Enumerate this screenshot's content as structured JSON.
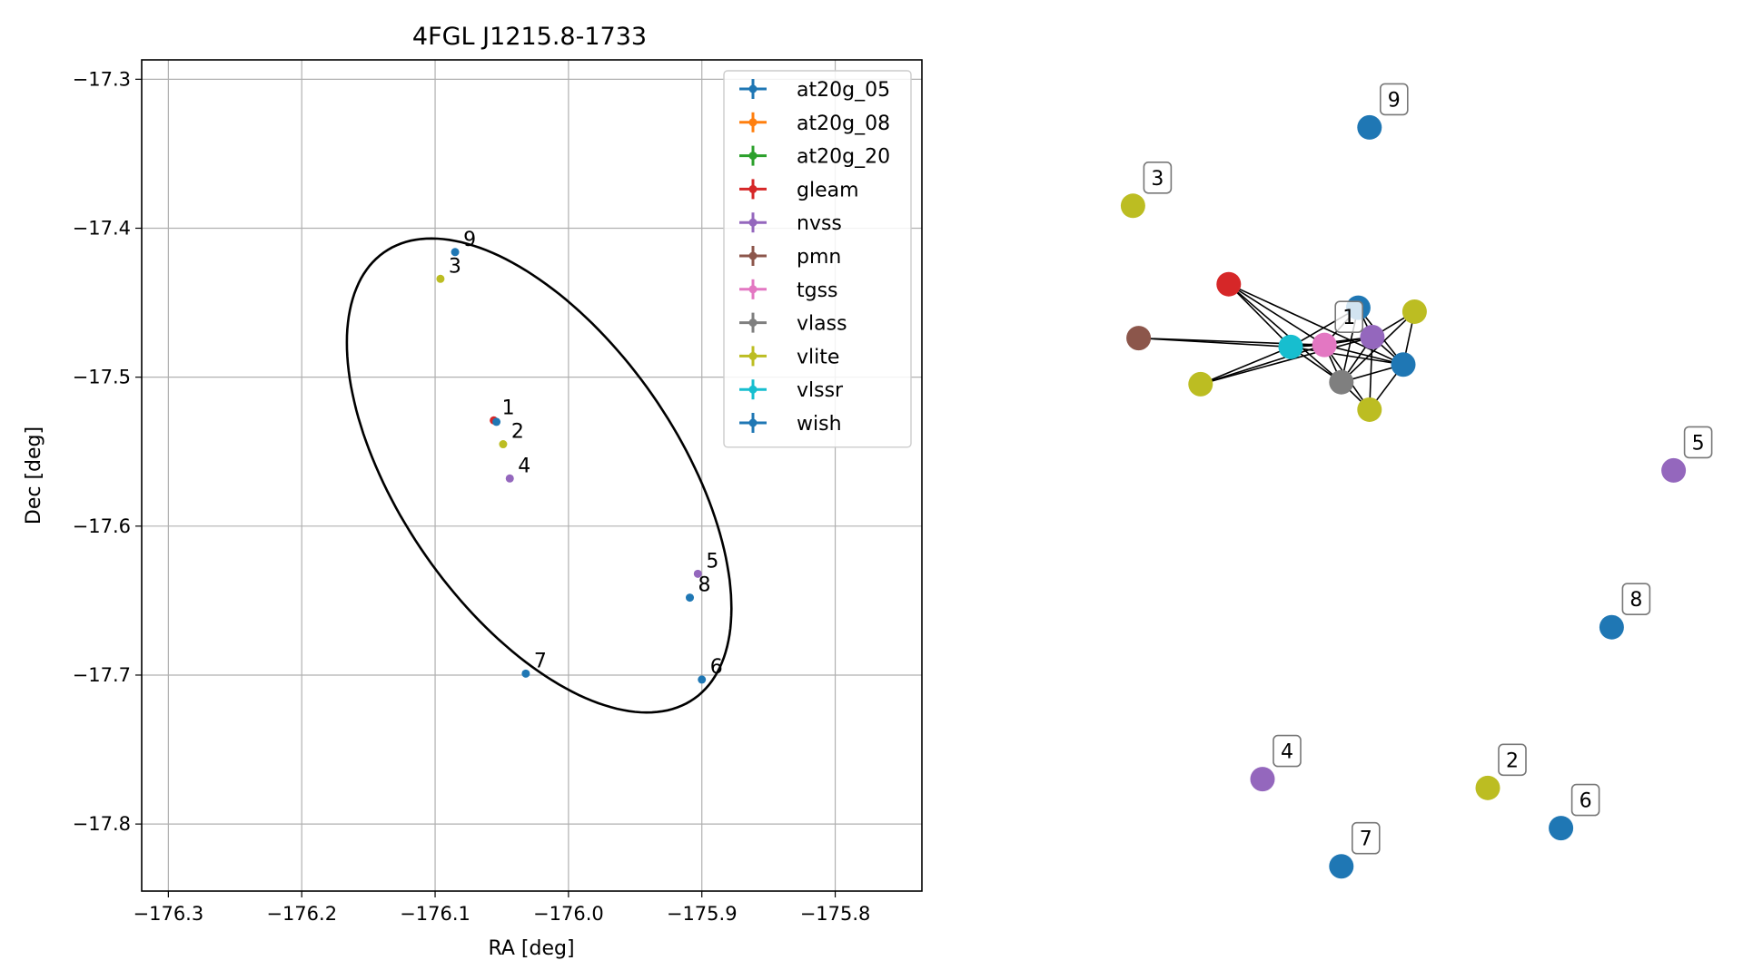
{
  "chart_data": [
    {
      "type": "scatter",
      "title": "4FGL J1215.8-1733",
      "xlabel": "RA [deg]",
      "ylabel": "Dec [deg]",
      "xlim": [
        -176.32,
        -175.735
      ],
      "ylim": [
        -17.845,
        -17.287
      ],
      "x_ticks": [
        -176.3,
        -176.2,
        -176.1,
        -176.0,
        -175.9,
        -175.8
      ],
      "x_tick_labels": [
        "−176.3",
        "−176.2",
        "−176.1",
        "−176.0",
        "−175.9",
        "−175.8"
      ],
      "y_ticks": [
        -17.3,
        -17.4,
        -17.5,
        -17.6,
        -17.7,
        -17.8
      ],
      "y_tick_labels": [
        "−17.3",
        "−17.4",
        "−17.5",
        "−17.6",
        "−17.7",
        "−17.8"
      ],
      "grid": true,
      "legend_position": "top-right",
      "legend": [
        {
          "name": "at20g_05",
          "color": "#1f77b4"
        },
        {
          "name": "at20g_08",
          "color": "#ff7f0e"
        },
        {
          "name": "at20g_20",
          "color": "#2ca02c"
        },
        {
          "name": "gleam",
          "color": "#d62728"
        },
        {
          "name": "nvss",
          "color": "#9467bd"
        },
        {
          "name": "pmn",
          "color": "#8c564b"
        },
        {
          "name": "tgss",
          "color": "#e377c2"
        },
        {
          "name": "vlass",
          "color": "#7f7f7f"
        },
        {
          "name": "vlite",
          "color": "#bcbd22"
        },
        {
          "name": "vlssr",
          "color": "#17becf"
        },
        {
          "name": "wish",
          "color": "#1f77b4"
        }
      ],
      "ellipse": {
        "center": [
          -176.022,
          -17.566
        ],
        "semi_axis_1": 0.19,
        "semi_axis_2": 0.1,
        "angle_deg": 130
      },
      "points": [
        {
          "label": "1",
          "ra": -176.056,
          "dec": -17.529,
          "color": "#d62728"
        },
        {
          "label": "",
          "ra": -176.054,
          "dec": -17.53,
          "color": "#1f77b4"
        },
        {
          "label": "2",
          "ra": -176.049,
          "dec": -17.545,
          "color": "#bcbd22"
        },
        {
          "label": "4",
          "ra": -176.044,
          "dec": -17.568,
          "color": "#9467bd"
        },
        {
          "label": "3",
          "ra": -176.096,
          "dec": -17.434,
          "color": "#bcbd22"
        },
        {
          "label": "9",
          "ra": -176.085,
          "dec": -17.416,
          "color": "#1f77b4"
        },
        {
          "label": "5",
          "ra": -175.903,
          "dec": -17.632,
          "color": "#9467bd"
        },
        {
          "label": "8",
          "ra": -175.909,
          "dec": -17.648,
          "color": "#1f77b4"
        },
        {
          "label": "7",
          "ra": -176.032,
          "dec": -17.699,
          "color": "#1f77b4"
        },
        {
          "label": "6",
          "ra": -175.9,
          "dec": -17.703,
          "color": "#1f77b4"
        }
      ]
    },
    {
      "type": "network",
      "nodes": [
        {
          "id": "9",
          "label": "9",
          "color": "#1f77b4",
          "x": 0.44,
          "y": 0.13
        },
        {
          "id": "3",
          "label": "3",
          "color": "#bcbd22",
          "x": 0.02,
          "y": 0.21
        },
        {
          "id": "gleam",
          "label": "",
          "color": "#d62728",
          "x": 0.19,
          "y": 0.29
        },
        {
          "id": "pmn",
          "label": "",
          "color": "#8c564b",
          "x": 0.03,
          "y": 0.345
        },
        {
          "id": "wish_a",
          "label": "",
          "color": "#1f77b4",
          "x": 0.42,
          "y": 0.314
        },
        {
          "id": "vlite_a",
          "label": "",
          "color": "#bcbd22",
          "x": 0.52,
          "y": 0.318
        },
        {
          "id": "tgss",
          "label": "1",
          "color": "#e377c2",
          "x": 0.36,
          "y": 0.352
        },
        {
          "id": "nvss",
          "label": "",
          "color": "#9467bd",
          "x": 0.445,
          "y": 0.344
        },
        {
          "id": "vlssr",
          "label": "",
          "color": "#17becf",
          "x": 0.3,
          "y": 0.354
        },
        {
          "id": "vlite_b",
          "label": "",
          "color": "#bcbd22",
          "x": 0.14,
          "y": 0.392
        },
        {
          "id": "vlass",
          "label": "",
          "color": "#7f7f7f",
          "x": 0.39,
          "y": 0.39
        },
        {
          "id": "at20g",
          "label": "",
          "color": "#1f77b4",
          "x": 0.5,
          "y": 0.372
        },
        {
          "id": "vlite_c",
          "label": "",
          "color": "#bcbd22",
          "x": 0.44,
          "y": 0.418
        },
        {
          "id": "5",
          "label": "5",
          "color": "#9467bd",
          "x": 0.98,
          "y": 0.48
        },
        {
          "id": "8",
          "label": "8",
          "color": "#1f77b4",
          "x": 0.87,
          "y": 0.64
        },
        {
          "id": "4",
          "label": "4",
          "color": "#9467bd",
          "x": 0.25,
          "y": 0.795
        },
        {
          "id": "2",
          "label": "2",
          "color": "#bcbd22",
          "x": 0.65,
          "y": 0.804
        },
        {
          "id": "6",
          "label": "6",
          "color": "#1f77b4",
          "x": 0.78,
          "y": 0.845
        },
        {
          "id": "7",
          "label": "7",
          "color": "#1f77b4",
          "x": 0.39,
          "y": 0.884
        }
      ],
      "edges": [
        [
          "gleam",
          "tgss"
        ],
        [
          "gleam",
          "vlssr"
        ],
        [
          "gleam",
          "vlass"
        ],
        [
          "gleam",
          "at20g"
        ],
        [
          "pmn",
          "vlssr"
        ],
        [
          "pmn",
          "tgss"
        ],
        [
          "vlite_b",
          "vlssr"
        ],
        [
          "vlite_b",
          "tgss"
        ],
        [
          "vlite_b",
          "nvss"
        ],
        [
          "vlssr",
          "tgss"
        ],
        [
          "vlssr",
          "nvss"
        ],
        [
          "vlssr",
          "wish_a"
        ],
        [
          "vlssr",
          "vlass"
        ],
        [
          "vlssr",
          "at20g"
        ],
        [
          "tgss",
          "nvss"
        ],
        [
          "tgss",
          "wish_a"
        ],
        [
          "tgss",
          "vlass"
        ],
        [
          "tgss",
          "at20g"
        ],
        [
          "tgss",
          "vlite_c"
        ],
        [
          "wish_a",
          "nvss"
        ],
        [
          "wish_a",
          "vlass"
        ],
        [
          "wish_a",
          "at20g"
        ],
        [
          "vlite_a",
          "nvss"
        ],
        [
          "vlite_a",
          "at20g"
        ],
        [
          "vlite_a",
          "vlass"
        ],
        [
          "nvss",
          "vlass"
        ],
        [
          "nvss",
          "at20g"
        ],
        [
          "nvss",
          "vlite_c"
        ],
        [
          "vlass",
          "at20g"
        ],
        [
          "vlass",
          "vlite_c"
        ],
        [
          "at20g",
          "vlite_c"
        ]
      ]
    }
  ]
}
